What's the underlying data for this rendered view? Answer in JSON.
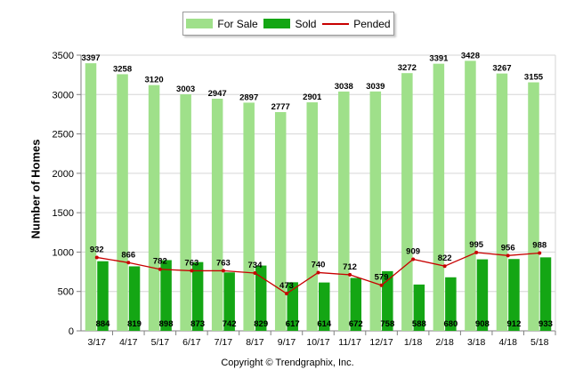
{
  "colors": {
    "for_sale": "#9fe08a",
    "sold": "#14a614",
    "pended": "#c80000"
  },
  "legend": {
    "for_sale": "For Sale",
    "sold": "Sold",
    "pended": "Pended"
  },
  "footer": "Copyright © Trendgraphix, Inc.",
  "chart_data": {
    "type": "bar",
    "ylabel": "Number of Homes",
    "ylim": [
      0,
      3500
    ],
    "yticks": [
      0,
      500,
      1000,
      1500,
      2000,
      2500,
      3000,
      3500
    ],
    "grid": true,
    "legend_position": "top",
    "categories": [
      "3/17",
      "4/17",
      "5/17",
      "6/17",
      "7/17",
      "8/17",
      "9/17",
      "10/17",
      "11/17",
      "12/17",
      "1/18",
      "2/18",
      "3/18",
      "4/18",
      "5/18"
    ],
    "series": [
      {
        "name": "For Sale",
        "type": "bar",
        "values": [
          3397,
          3258,
          3120,
          3003,
          2947,
          2897,
          2777,
          2901,
          3038,
          3039,
          3272,
          3391,
          3428,
          3267,
          3155
        ]
      },
      {
        "name": "Sold",
        "type": "bar",
        "values": [
          884,
          819,
          898,
          873,
          742,
          829,
          617,
          614,
          672,
          758,
          588,
          680,
          908,
          912,
          933
        ]
      },
      {
        "name": "Pended",
        "type": "line",
        "values": [
          932,
          866,
          782,
          763,
          763,
          734,
          473,
          740,
          712,
          579,
          909,
          822,
          995,
          956,
          988
        ]
      }
    ]
  }
}
